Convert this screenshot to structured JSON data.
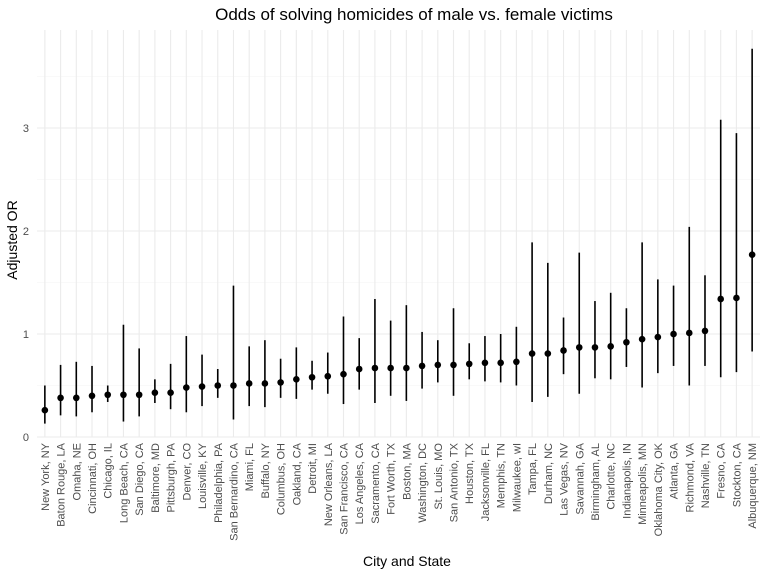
{
  "chart_data": {
    "type": "scatter",
    "title": "Odds of solving homicides of male vs. female victims",
    "xlabel": "City and State",
    "ylabel": "Adjusted OR",
    "ylim": [
      0,
      3.75
    ],
    "y_ticks": [
      "0",
      "1",
      "2",
      "3"
    ],
    "grid": true,
    "legend": "none",
    "colors": {
      "points": "#000000",
      "grid": "#ebebeb",
      "ticks": "#4d4d4d"
    },
    "categories": [
      "New York, NY",
      "Baton Rouge, LA",
      "Omaha, NE",
      "Cincinnati, OH",
      "Chicago, IL",
      "Long Beach, CA",
      "San Diego, CA",
      "Baltimore, MD",
      "Pittsburgh, PA",
      "Denver, CO",
      "Louisville, KY",
      "Philadelphia, PA",
      "San Bernardino, CA",
      "Miami, FL",
      "Buffalo, NY",
      "Columbus, OH",
      "Oakland, CA",
      "Detroit, MI",
      "New Orleans, LA",
      "San Francisco, CA",
      "Los Angeles, CA",
      "Sacramento, CA",
      "Fort Worth, TX",
      "Boston, MA",
      "Washington, DC",
      "St. Louis, MO",
      "San Antonio, TX",
      "Houston, TX",
      "Jacksonville, FL",
      "Memphis, TN",
      "Milwaukee, wI",
      "Tampa, FL",
      "Durham, NC",
      "Las Vegas, NV",
      "Savannah, GA",
      "Birmingham, AL",
      "Charlotte, NC",
      "Indianapolis, IN",
      "Minneapolis, MN",
      "Oklahoma City, OK",
      "Atlanta, GA",
      "Richmond, VA",
      "Nashville, TN",
      "Fresno, CA",
      "Stockton, CA",
      "Albuquerque, NM"
    ],
    "series": [
      {
        "or": [
          0.26,
          0.38,
          0.38,
          0.4,
          0.41,
          0.41,
          0.41,
          0.43,
          0.43,
          0.48,
          0.49,
          0.5,
          0.5,
          0.52,
          0.52,
          0.53,
          0.56,
          0.58,
          0.59,
          0.61,
          0.66,
          0.67,
          0.67,
          0.67,
          0.69,
          0.7,
          0.7,
          0.71,
          0.72,
          0.72,
          0.73,
          0.81,
          0.81,
          0.84,
          0.87,
          0.87,
          0.88,
          0.92,
          0.95,
          0.97,
          1.0,
          1.01,
          1.03,
          1.34,
          1.35,
          1.77
        ],
        "low": [
          0.13,
          0.21,
          0.2,
          0.24,
          0.34,
          0.15,
          0.2,
          0.33,
          0.27,
          0.24,
          0.3,
          0.38,
          0.17,
          0.3,
          0.29,
          0.38,
          0.37,
          0.46,
          0.42,
          0.32,
          0.46,
          0.33,
          0.4,
          0.35,
          0.47,
          0.53,
          0.4,
          0.56,
          0.54,
          0.53,
          0.5,
          0.34,
          0.39,
          0.61,
          0.42,
          0.57,
          0.56,
          0.68,
          0.48,
          0.62,
          0.69,
          0.5,
          0.69,
          0.58,
          0.63,
          0.83
        ],
        "high": [
          0.5,
          0.7,
          0.73,
          0.69,
          0.5,
          1.09,
          0.86,
          0.56,
          0.71,
          0.98,
          0.8,
          0.66,
          1.47,
          0.88,
          0.94,
          0.76,
          0.87,
          0.74,
          0.82,
          1.17,
          0.96,
          1.34,
          1.13,
          1.28,
          1.02,
          0.94,
          1.25,
          0.91,
          0.98,
          1.0,
          1.07,
          1.89,
          1.69,
          1.16,
          1.79,
          1.32,
          1.4,
          1.25,
          1.89,
          1.53,
          1.47,
          2.04,
          1.57,
          3.08,
          2.95,
          3.77
        ]
      }
    ]
  }
}
